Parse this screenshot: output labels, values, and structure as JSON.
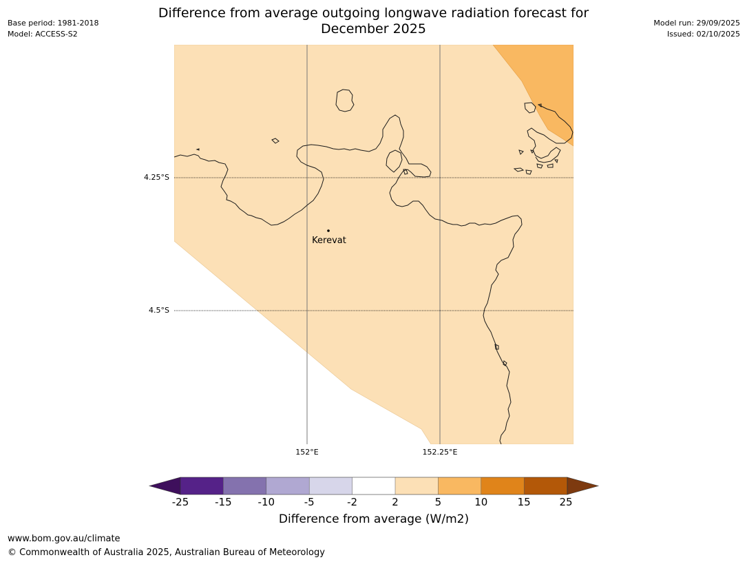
{
  "header": {
    "title_line1": "Difference from average outgoing longwave radiation forecast for",
    "title_line2": "December 2025",
    "base_period": "Base period: 1981-2018",
    "model": "Model: ACCESS-S2",
    "model_run": "Model run: 29/09/2025",
    "issued": "Issued: 02/10/2025"
  },
  "map": {
    "lat_labels": [
      "4.25°S",
      "4.5°S"
    ],
    "lon_labels": [
      "152°E",
      "152.25°E"
    ],
    "place": "Kerevat",
    "colors": {
      "forecast_fill": "#fce0b6",
      "high_fill": "#f9b861",
      "coast": "#1a1a1a"
    }
  },
  "colorbar": {
    "label": "Difference from average (W/m2)",
    "ticks": [
      "-25",
      "-15",
      "-10",
      "-5",
      "-2",
      "2",
      "5",
      "10",
      "15",
      "25"
    ],
    "colors": [
      "#3e0f5c",
      "#552288",
      "#8472ae",
      "#b0a8d2",
      "#d7d6ea",
      "#ffffff",
      "#fce0b6",
      "#f9b861",
      "#e0841a",
      "#b35808",
      "#7d3a0f"
    ]
  },
  "footer": {
    "url": "www.bom.gov.au/climate",
    "copyright": "© Commonwealth of Australia 2025, Australian Bureau of Meteorology"
  }
}
